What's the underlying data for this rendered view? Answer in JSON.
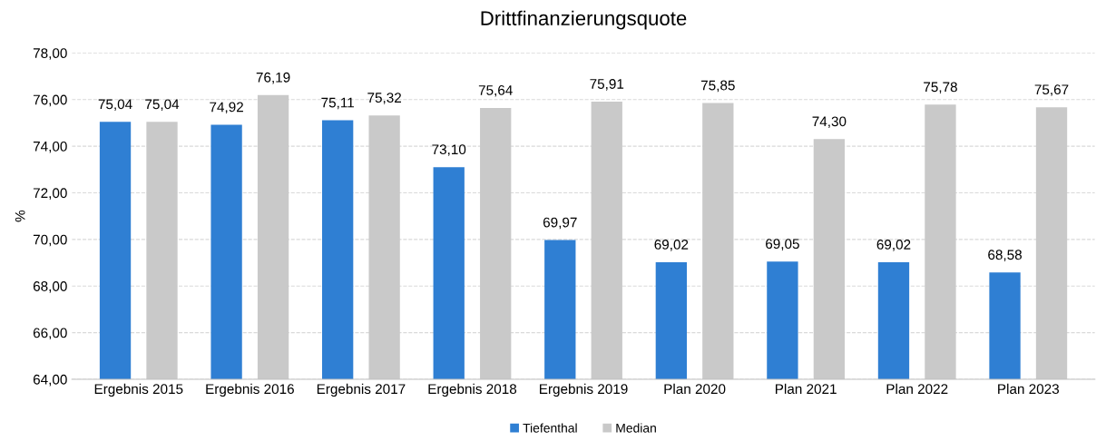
{
  "chart_data": {
    "type": "bar",
    "title": "Drittfinanzierungsquote",
    "ylabel": "%",
    "categories": [
      "Ergebnis 2015",
      "Ergebnis 2016",
      "Ergebnis 2017",
      "Ergebnis 2018",
      "Ergebnis 2019",
      "Plan 2020",
      "Plan 2021",
      "Plan 2022",
      "Plan 2023"
    ],
    "series": [
      {
        "name": "Tiefenthal",
        "color": "#2f7fd3",
        "values": [
          75.04,
          74.92,
          75.11,
          73.1,
          69.97,
          69.02,
          69.05,
          69.02,
          68.58
        ],
        "value_labels": [
          "75,04",
          "74,92",
          "75,11",
          "73,10",
          "69,97",
          "69,02",
          "69,05",
          "69,02",
          "68,58"
        ]
      },
      {
        "name": "Median",
        "color": "#c9c9c9",
        "values": [
          75.04,
          76.19,
          75.32,
          75.64,
          75.91,
          75.85,
          74.3,
          75.78,
          75.67
        ],
        "value_labels": [
          "75,04",
          "76,19",
          "75,32",
          "75,64",
          "75,91",
          "75,85",
          "74,30",
          "75,78",
          "75,67"
        ]
      }
    ],
    "ylim": [
      64,
      78
    ],
    "yticks": [
      {
        "value": 64,
        "label": "64,00"
      },
      {
        "value": 66,
        "label": "66,00"
      },
      {
        "value": 68,
        "label": "68,00"
      },
      {
        "value": 70,
        "label": "70,00"
      },
      {
        "value": 72,
        "label": "72,00"
      },
      {
        "value": 74,
        "label": "74,00"
      },
      {
        "value": 76,
        "label": "76,00"
      },
      {
        "value": 78,
        "label": "78,00"
      }
    ],
    "grid": "y",
    "legend": "bottom"
  }
}
